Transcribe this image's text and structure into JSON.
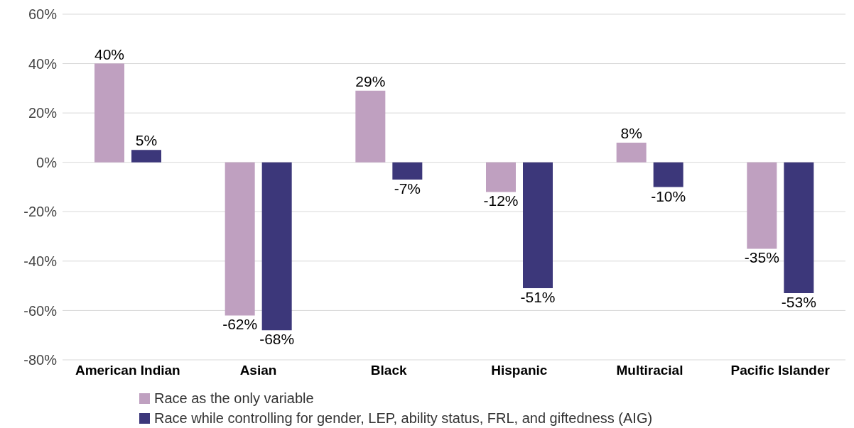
{
  "chart_data": {
    "type": "bar",
    "categories": [
      "American Indian",
      "Asian",
      "Black",
      "Hispanic",
      "Multiracial",
      "Pacific Islander"
    ],
    "series": [
      {
        "name": "Race as the only variable",
        "color": "#bfa0c0",
        "values": [
          40,
          -62,
          29,
          -12,
          8,
          -35
        ],
        "value_labels": [
          "40%",
          "-62%",
          "29%",
          "-12%",
          "8%",
          "-35%"
        ]
      },
      {
        "name": "Race while controlling for gender, LEP, ability status, FRL, and giftedness (AIG)",
        "color": "#3c377a",
        "values": [
          5,
          -68,
          -7,
          -51,
          -10,
          -53
        ],
        "value_labels": [
          "5%",
          "-68%",
          "-7%",
          "-51%",
          "-10%",
          "-53%"
        ]
      }
    ],
    "ylim": [
      -80,
      60
    ],
    "yticks": [
      {
        "value": -80,
        "label": "-80%"
      },
      {
        "value": -60,
        "label": "-60%"
      },
      {
        "value": -40,
        "label": "-40%"
      },
      {
        "value": -20,
        "label": "-20%"
      },
      {
        "value": 0,
        "label": "0%"
      },
      {
        "value": 20,
        "label": "20%"
      },
      {
        "value": 40,
        "label": "40%"
      },
      {
        "value": 60,
        "label": "60%"
      }
    ],
    "grid": "y",
    "legend": "bottom"
  }
}
